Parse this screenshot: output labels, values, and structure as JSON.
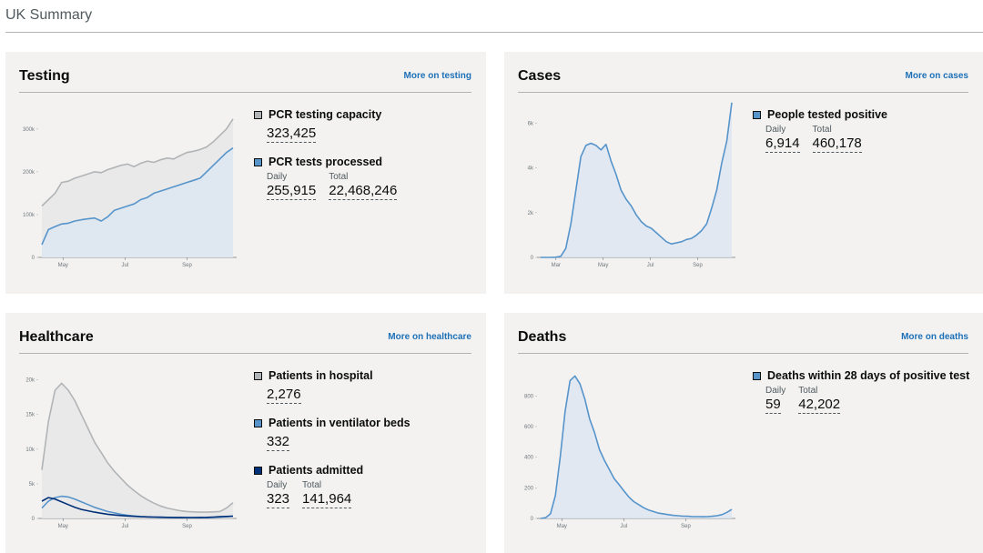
{
  "page": {
    "title": "UK Summary"
  },
  "cards": {
    "testing": {
      "title": "Testing",
      "link": "More on testing",
      "metrics": [
        {
          "label": "PCR testing capacity",
          "color": "#b1b4b6",
          "single": "323,425"
        },
        {
          "label": "PCR tests processed",
          "color": "#5694ca",
          "daily_label": "Daily",
          "daily": "255,915",
          "total_label": "Total",
          "total": "22,468,246"
        }
      ]
    },
    "cases": {
      "title": "Cases",
      "link": "More on cases",
      "metrics": [
        {
          "label": "People tested positive",
          "color": "#5694ca",
          "daily_label": "Daily",
          "daily": "6,914",
          "total_label": "Total",
          "total": "460,178"
        }
      ]
    },
    "healthcare": {
      "title": "Healthcare",
      "link": "More on healthcare",
      "metrics": [
        {
          "label": "Patients in hospital",
          "color": "#b1b4b6",
          "single": "2,276"
        },
        {
          "label": "Patients in ventilator beds",
          "color": "#5694ca",
          "single": "332"
        },
        {
          "label": "Patients admitted",
          "color": "#003078",
          "daily_label": "Daily",
          "daily": "323",
          "total_label": "Total",
          "total": "141,964"
        }
      ]
    },
    "deaths": {
      "title": "Deaths",
      "link": "More on deaths",
      "metrics": [
        {
          "label": "Deaths within 28 days of positive test",
          "color": "#5694ca",
          "daily_label": "Daily",
          "daily": "59",
          "total_label": "Total",
          "total": "42,202"
        }
      ]
    }
  },
  "chart_data": [
    {
      "type": "area",
      "title": "Testing",
      "x_ticks": [
        "May",
        "Jul",
        "Sep"
      ],
      "y_ticks": [
        "0",
        "100k",
        "200k",
        "300k"
      ],
      "ylim": [
        0,
        340000
      ],
      "series": [
        {
          "name": "PCR testing capacity",
          "color": "#b1b4b6",
          "values": [
            120000,
            135000,
            150000,
            175000,
            178000,
            185000,
            190000,
            195000,
            200000,
            198000,
            205000,
            210000,
            215000,
            218000,
            212000,
            220000,
            225000,
            222000,
            228000,
            232000,
            230000,
            238000,
            245000,
            248000,
            252000,
            258000,
            270000,
            285000,
            300000,
            323425
          ]
        },
        {
          "name": "PCR tests processed",
          "color": "#5694ca",
          "values": [
            30000,
            65000,
            72000,
            78000,
            80000,
            85000,
            88000,
            90000,
            92000,
            85000,
            95000,
            110000,
            115000,
            120000,
            125000,
            135000,
            140000,
            150000,
            155000,
            160000,
            165000,
            170000,
            175000,
            180000,
            185000,
            200000,
            215000,
            230000,
            245000,
            255915
          ]
        }
      ]
    },
    {
      "type": "area",
      "title": "Cases",
      "x_ticks": [
        "Mar",
        "May",
        "Jul",
        "Sep"
      ],
      "y_ticks": [
        "0",
        "2k",
        "4k",
        "6k"
      ],
      "ylim": [
        0,
        6500
      ],
      "series": [
        {
          "name": "People tested positive",
          "color": "#5694ca",
          "values": [
            0,
            0,
            0,
            10,
            50,
            400,
            1500,
            3000,
            4500,
            5000,
            5100,
            5000,
            4800,
            5050,
            4300,
            3700,
            3000,
            2600,
            2300,
            1900,
            1600,
            1400,
            1300,
            1100,
            900,
            700,
            600,
            650,
            700,
            800,
            850,
            1000,
            1200,
            1500,
            2200,
            3000,
            4200,
            5200,
            6914
          ]
        }
      ]
    },
    {
      "type": "line",
      "title": "Healthcare",
      "x_ticks": [
        "May",
        "Jul",
        "Sep"
      ],
      "y_ticks": [
        "0",
        "5k",
        "10k",
        "15k",
        "20k"
      ],
      "ylim": [
        0,
        21000
      ],
      "series": [
        {
          "name": "Patients in hospital",
          "color": "#b1b4b6",
          "values": [
            7000,
            14000,
            18500,
            19500,
            18500,
            17000,
            15000,
            13000,
            11000,
            9500,
            8000,
            6800,
            5800,
            4800,
            4000,
            3300,
            2700,
            2200,
            1800,
            1500,
            1300,
            1100,
            1000,
            950,
            900,
            900,
            950,
            1000,
            1500,
            2276
          ]
        },
        {
          "name": "Patients in ventilator beds",
          "color": "#5694ca",
          "values": [
            1500,
            2500,
            3000,
            3200,
            3100,
            2800,
            2400,
            2000,
            1600,
            1300,
            1000,
            800,
            600,
            450,
            350,
            280,
            220,
            180,
            150,
            130,
            120,
            110,
            100,
            100,
            100,
            110,
            130,
            180,
            250,
            332
          ]
        },
        {
          "name": "Patients admitted",
          "color": "#003078",
          "values": [
            2500,
            3000,
            2800,
            2400,
            2000,
            1600,
            1300,
            1100,
            900,
            750,
            600,
            500,
            420,
            350,
            300,
            250,
            220,
            200,
            180,
            160,
            150,
            140,
            130,
            130,
            140,
            160,
            200,
            250,
            290,
            323
          ]
        }
      ]
    },
    {
      "type": "area",
      "title": "Deaths",
      "x_ticks": [
        "May",
        "Jul",
        "Sep"
      ],
      "y_ticks": [
        "0",
        "200",
        "400",
        "600",
        "800"
      ],
      "ylim": [
        0,
        950
      ],
      "series": [
        {
          "name": "Deaths within 28 days of positive test",
          "color": "#5694ca",
          "values": [
            0,
            5,
            30,
            150,
            400,
            700,
            900,
            930,
            880,
            780,
            650,
            560,
            450,
            380,
            320,
            260,
            220,
            180,
            140,
            110,
            90,
            70,
            55,
            45,
            35,
            30,
            25,
            20,
            18,
            15,
            14,
            12,
            12,
            11,
            12,
            14,
            18,
            25,
            40,
            59
          ]
        }
      ]
    }
  ]
}
